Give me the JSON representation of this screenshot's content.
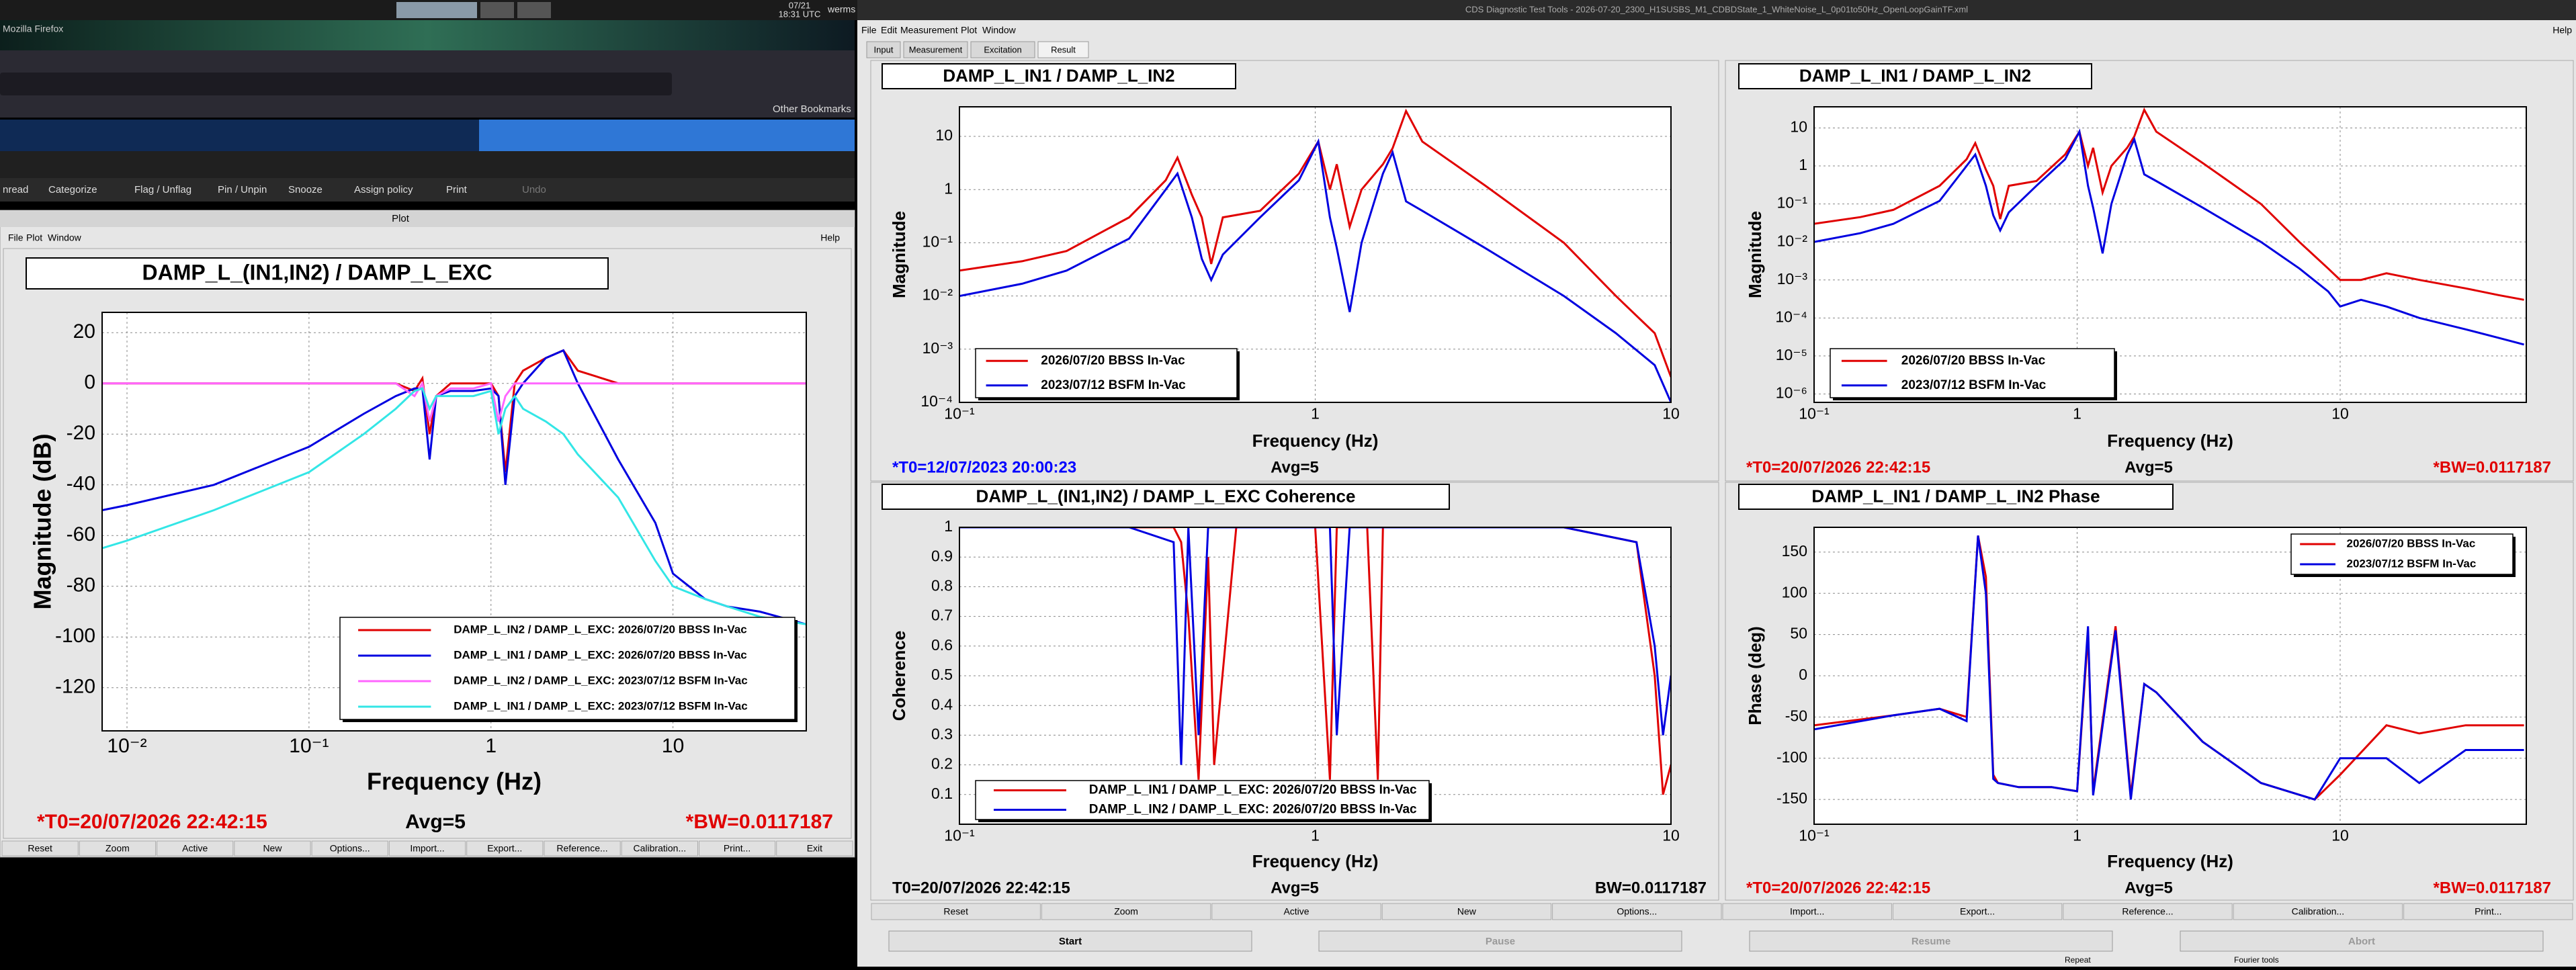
{
  "top_bar": {
    "date": "07/21",
    "time": "18:31 UTC",
    "user": "werms"
  },
  "browser": {
    "title": "Mozilla Firefox",
    "bookmarks": "Other Bookmarks",
    "toolbar": [
      "nread",
      "Categorize",
      "Flag / Unflag",
      "Pin / Unpin",
      "Snooze",
      "Assign policy",
      "Print",
      "Undo"
    ]
  },
  "plot_window": {
    "title": "Plot",
    "menu": [
      "File",
      "Plot",
      "Window"
    ],
    "help": "Help",
    "buttons": [
      "Reset",
      "Zoom",
      "Active",
      "New",
      "Options...",
      "Import...",
      "Export...",
      "Reference...",
      "Calibration...",
      "Print...",
      "Exit"
    ]
  },
  "dtt_window": {
    "title": "CDS Diagnostic Test Tools - 2026-07-20_2300_H1SUSBS_M1_CDBDState_1_WhiteNoise_L_0p01to50Hz_OpenLoopGainTF.xml",
    "menu": [
      "File",
      "Edit",
      "Measurement",
      "Plot",
      "Window"
    ],
    "help": "Help",
    "tabs": [
      "Input",
      "Measurement",
      "Excitation",
      "Result"
    ],
    "buttons": [
      "Reset",
      "Zoom",
      "Active",
      "New",
      "Options...",
      "Import...",
      "Export...",
      "Reference...",
      "Calibration...",
      "Print..."
    ],
    "run_buttons": [
      "Start",
      "Pause",
      "Resume",
      "Abort"
    ],
    "footer": [
      "Repeat",
      "Fourier tools"
    ]
  },
  "chart_data": [
    {
      "type": "line",
      "title": "DAMP_L_(IN1,IN2) / DAMP_L_EXC",
      "xlabel": "Frequency (Hz)",
      "ylabel": "Magnitude (dB)",
      "log_x": true,
      "log_y": false,
      "grid": true,
      "legend": "lower right",
      "xlim": [
        0.0073,
        54
      ],
      "ylim": [
        -137,
        28
      ],
      "xticks": [
        {
          "value": 0.01,
          "label": "10⁻²"
        },
        {
          "value": 0.1,
          "label": "10⁻¹"
        },
        1,
        10
      ],
      "yticks": [
        20,
        0,
        -20,
        -40,
        -60,
        -80,
        -100,
        -120
      ],
      "x": [
        0.0073,
        0.01,
        0.03,
        0.1,
        0.2,
        0.3,
        0.38,
        0.42,
        0.46,
        0.5,
        0.6,
        0.8,
        1,
        1.1,
        1.2,
        1.35,
        1.5,
        2,
        2.5,
        3,
        5,
        8,
        10,
        15,
        20,
        30,
        54
      ],
      "series": [
        {
          "name": "DAMP_L_IN2 / DAMP_L_EXC: 2026/07/20 BBSS In-Vac",
          "color": "#e00000",
          "values": [
            0,
            0,
            0,
            0,
            0,
            0,
            -3,
            2,
            -20,
            -5,
            0,
            0,
            0,
            -5,
            -35,
            0,
            5,
            10,
            13,
            5,
            0,
            0,
            0,
            0,
            0,
            0,
            0
          ]
        },
        {
          "name": "DAMP_L_IN1 / DAMP_L_EXC: 2026/07/20 BBSS In-Vac",
          "color": "#0000e0",
          "values": [
            -50,
            -48,
            -40,
            -25,
            -12,
            -5,
            -2,
            -2,
            -30,
            -5,
            -3,
            -3,
            -2,
            -5,
            -40,
            -5,
            0,
            10,
            13,
            0,
            -30,
            -55,
            -75,
            -85,
            -88,
            -90,
            -95
          ]
        },
        {
          "name": "DAMP_L_IN2 / DAMP_L_EXC: 2023/07/12 BSFM In-Vac",
          "color": "#ff66ff",
          "values": [
            0,
            0,
            0,
            0,
            0,
            0,
            -5,
            0,
            -15,
            -5,
            -2,
            -2,
            0,
            -15,
            -5,
            0,
            0,
            0,
            0,
            0,
            0,
            0,
            0,
            0,
            0,
            0,
            0
          ]
        },
        {
          "name": "DAMP_L_IN1 / DAMP_L_EXC: 2023/07/12 BSFM In-Vac",
          "color": "#33e6e6",
          "values": [
            -65,
            -62,
            -50,
            -35,
            -20,
            -10,
            -3,
            -2,
            -10,
            -5,
            -5,
            -5,
            -3,
            -20,
            -10,
            -5,
            -10,
            -15,
            -20,
            -28,
            -45,
            -70,
            -80,
            -85,
            -88,
            -92,
            -95
          ]
        }
      ],
      "status": [
        {
          "text": "*T0=20/07/2026 22:42:15",
          "color": "#e00000"
        },
        {
          "text": "Avg=5",
          "color": "#000000"
        },
        {
          "text": "*BW=0.0117187",
          "color": "#e00000"
        }
      ]
    },
    {
      "type": "line",
      "title": "DAMP_L_IN1 / DAMP_L_IN2",
      "xlabel": "Frequency (Hz)",
      "ylabel": "Magnitude",
      "log_x": true,
      "log_y": true,
      "grid": true,
      "legend": "lower left",
      "xlim": [
        0.1,
        10
      ],
      "ylim": [
        0.0001,
        36
      ],
      "xticks": [
        {
          "value": 0.1,
          "label": "10⁻¹"
        },
        1,
        10
      ],
      "yticks": [
        {
          "value": 0.0001,
          "label": "10⁻⁴"
        },
        {
          "value": 0.001,
          "label": "10⁻³"
        },
        {
          "value": 0.01,
          "label": "10⁻²"
        },
        {
          "value": 0.1,
          "label": "10⁻¹"
        },
        1,
        10
      ],
      "x": [
        0.1,
        0.15,
        0.2,
        0.3,
        0.38,
        0.41,
        0.45,
        0.48,
        0.51,
        0.55,
        0.7,
        0.9,
        1.02,
        1.1,
        1.15,
        1.25,
        1.35,
        1.55,
        1.65,
        1.8,
        2,
        3,
        5,
        7,
        9,
        10
      ],
      "series": [
        {
          "name": "2026/07/20 BBSS In-Vac",
          "color": "#e00000",
          "values": [
            0.03,
            0.045,
            0.07,
            0.3,
            1.5,
            4,
            0.8,
            0.3,
            0.04,
            0.3,
            0.4,
            2,
            8,
            1,
            3,
            0.2,
            1,
            3,
            6,
            30,
            8,
            1.2,
            0.1,
            0.01,
            0.002,
            0.0003
          ]
        },
        {
          "name": "2023/07/12 BSFM In-Vac",
          "color": "#0000e0",
          "values": [
            0.01,
            0.017,
            0.03,
            0.12,
            1,
            2,
            0.3,
            0.05,
            0.02,
            0.06,
            0.3,
            1.5,
            8,
            0.3,
            0.08,
            0.005,
            0.1,
            2,
            5,
            0.6,
            0.4,
            0.08,
            0.01,
            0.002,
            0.0005,
            0.0001
          ]
        }
      ],
      "status": [
        {
          "text": "*T0=12/07/2023 20:00:23",
          "color": "#0000ff"
        },
        {
          "text": "Avg=5",
          "color": "#000000"
        }
      ]
    },
    {
      "type": "line",
      "title": "DAMP_L_IN1 / DAMP_L_IN2",
      "xlabel": "Frequency (Hz)",
      "ylabel": "Magnitude",
      "log_x": true,
      "log_y": true,
      "grid": true,
      "legend": "lower left",
      "xlim": [
        0.1,
        51
      ],
      "ylim": [
        6e-07,
        36
      ],
      "xticks": [
        {
          "value": 0.1,
          "label": "10⁻¹"
        },
        1,
        10
      ],
      "yticks": [
        {
          "value": 1e-06,
          "label": "10⁻⁶"
        },
        {
          "value": 1e-05,
          "label": "10⁻⁵"
        },
        {
          "value": 0.0001,
          "label": "10⁻⁴"
        },
        {
          "value": 0.001,
          "label": "10⁻³"
        },
        {
          "value": 0.01,
          "label": "10⁻²"
        },
        {
          "value": 0.1,
          "label": "10⁻¹"
        },
        1,
        10
      ],
      "x": [
        0.1,
        0.15,
        0.2,
        0.3,
        0.38,
        0.41,
        0.45,
        0.48,
        0.51,
        0.55,
        0.7,
        0.9,
        1.02,
        1.1,
        1.15,
        1.25,
        1.35,
        1.55,
        1.65,
        1.8,
        2,
        3,
        5,
        7,
        9,
        10,
        12,
        15,
        20,
        30,
        40,
        50
      ],
      "series": [
        {
          "name": "2026/07/20 BBSS In-Vac",
          "color": "#e00000",
          "values": [
            0.03,
            0.045,
            0.07,
            0.3,
            1.5,
            4,
            0.8,
            0.3,
            0.04,
            0.3,
            0.4,
            2,
            8,
            1,
            3,
            0.2,
            1,
            3,
            6,
            30,
            8,
            1.2,
            0.1,
            0.01,
            0.002,
            0.001,
            0.001,
            0.0015,
            0.001,
            0.0006,
            0.0004,
            0.0003
          ]
        },
        {
          "name": "2023/07/12 BSFM In-Vac",
          "color": "#0000e0",
          "values": [
            0.01,
            0.017,
            0.03,
            0.12,
            1,
            2,
            0.3,
            0.05,
            0.02,
            0.06,
            0.3,
            1.5,
            8,
            0.3,
            0.08,
            0.005,
            0.1,
            2,
            5,
            0.6,
            0.4,
            0.08,
            0.01,
            0.002,
            0.0005,
            0.0002,
            0.0003,
            0.0002,
            0.0001,
            5e-05,
            3e-05,
            2e-05
          ]
        }
      ],
      "status": [
        {
          "text": "*T0=20/07/2026 22:42:15",
          "color": "#e00000"
        },
        {
          "text": "Avg=5",
          "color": "#000000"
        },
        {
          "text": "*BW=0.0117187",
          "color": "#e00000"
        }
      ]
    },
    {
      "type": "line",
      "title": "DAMP_L_(IN1,IN2) / DAMP_L_EXC Coherence",
      "xlabel": "Frequency (Hz)",
      "ylabel": "Coherence",
      "log_x": true,
      "log_y": false,
      "grid": true,
      "legend": "lower left",
      "xlim": [
        0.1,
        10
      ],
      "ylim": [
        0,
        1
      ],
      "xticks": [
        {
          "value": 0.1,
          "label": "10⁻¹"
        },
        1,
        10
      ],
      "yticks": [
        0.1,
        0.2,
        0.3,
        0.4,
        0.5,
        0.6,
        0.7,
        0.8,
        0.9,
        1
      ],
      "x": [
        0.1,
        0.3,
        0.4,
        0.42,
        0.44,
        0.47,
        0.5,
        0.52,
        0.6,
        0.8,
        1,
        1.1,
        1.15,
        1.25,
        1.4,
        1.5,
        1.55,
        2,
        5,
        8,
        9,
        9.5,
        10
      ],
      "series": [
        {
          "name": "DAMP_L_IN1 / DAMP_L_EXC: 2026/07/20 BBSS In-Vac",
          "color": "#e00000",
          "values": [
            1,
            1,
            1,
            0.95,
            0.7,
            0.15,
            0.9,
            0.2,
            1,
            1,
            1,
            0.15,
            1,
            1,
            1,
            0.15,
            1,
            1,
            1,
            0.95,
            0.5,
            0.1,
            0.2
          ]
        },
        {
          "name": "DAMP_L_IN2 / DAMP_L_EXC: 2026/07/20 BBSS In-Vac",
          "color": "#0000e0",
          "values": [
            1,
            1,
            0.95,
            0.2,
            1,
            0.3,
            1,
            1,
            1,
            1,
            1,
            1,
            0.3,
            1,
            1,
            1,
            1,
            1,
            1,
            0.95,
            0.6,
            0.3,
            0.5
          ]
        }
      ],
      "status": [
        {
          "text": "T0=20/07/2026 22:42:15",
          "color": "#000000"
        },
        {
          "text": "Avg=5",
          "color": "#000000"
        },
        {
          "text": "BW=0.0117187",
          "color": "#000000"
        }
      ]
    },
    {
      "type": "line",
      "title": "DAMP_L_IN1 / DAMP_L_IN2 Phase",
      "xlabel": "Frequency (Hz)",
      "ylabel": "Phase (deg)",
      "log_x": true,
      "log_y": false,
      "grid": true,
      "legend": "upper right",
      "xlim": [
        0.1,
        51
      ],
      "ylim": [
        -180,
        180
      ],
      "xticks": [
        {
          "value": 0.1,
          "label": "10⁻¹"
        },
        1,
        10
      ],
      "yticks": [
        150,
        100,
        50,
        0,
        -50,
        -100,
        -150
      ],
      "x": [
        0.1,
        0.2,
        0.3,
        0.38,
        0.42,
        0.45,
        0.48,
        0.5,
        0.6,
        0.8,
        1,
        1.1,
        1.15,
        1.4,
        1.6,
        1.8,
        2,
        3,
        5,
        8,
        10,
        15,
        20,
        30,
        50
      ],
      "series": [
        {
          "name": "2026/07/20 BBSS In-Vac",
          "color": "#e00000",
          "values": [
            -60,
            -48,
            -40,
            -50,
            170,
            120,
            -120,
            -130,
            -135,
            -135,
            -140,
            50,
            -140,
            60,
            -145,
            -10,
            -20,
            -80,
            -130,
            -150,
            -120,
            -60,
            -70,
            -60,
            -60
          ]
        },
        {
          "name": "2023/07/12 BSFM In-Vac",
          "color": "#0000e0",
          "values": [
            -65,
            -48,
            -40,
            -55,
            170,
            100,
            -125,
            -130,
            -135,
            -135,
            -140,
            60,
            -145,
            55,
            -150,
            -10,
            -20,
            -80,
            -130,
            -150,
            -100,
            -100,
            -130,
            -90,
            -90
          ]
        }
      ],
      "status": [
        {
          "text": "*T0=20/07/2026 22:42:15",
          "color": "#e00000"
        },
        {
          "text": "Avg=5",
          "color": "#000000"
        },
        {
          "text": "*BW=0.0117187",
          "color": "#e00000"
        }
      ]
    }
  ]
}
